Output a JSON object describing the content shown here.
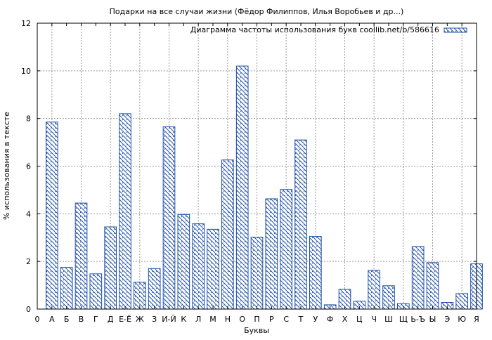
{
  "chart_data": {
    "type": "bar",
    "title": "Подарки на все случаи жизни (Фёдор Филиппов, Илья Воробьев и др...)",
    "xlabel": "Буквы",
    "ylabel": "% использования в тексте",
    "ylim": [
      0,
      12
    ],
    "yticks": [
      "0",
      "2",
      "4",
      "6",
      "8",
      "10",
      "12"
    ],
    "grid": true,
    "legend_position": "top-right",
    "x_first_tick": "0",
    "categories": [
      "А",
      "Б",
      "В",
      "Г",
      "Д",
      "Е-Ё",
      "Ж",
      "З",
      "И-Й",
      "К",
      "Л",
      "М",
      "Н",
      "О",
      "П",
      "Р",
      "С",
      "Т",
      "У",
      "Ф",
      "Х",
      "Ц",
      "Ч",
      "Ш",
      "Щ",
      "Ь-Ъ",
      "Ы",
      "Э",
      "Ю",
      "Я"
    ],
    "series": [
      {
        "name": "Диаграмма частоты использования букв coollib.net/b/586616",
        "values": [
          7.85,
          1.75,
          4.45,
          1.48,
          3.45,
          8.2,
          1.13,
          1.7,
          7.65,
          3.97,
          3.58,
          3.35,
          6.26,
          10.2,
          3.02,
          4.63,
          5.02,
          7.1,
          3.05,
          0.18,
          0.83,
          0.33,
          1.63,
          0.98,
          0.23,
          2.63,
          1.95,
          0.28,
          0.65,
          1.9
        ]
      }
    ],
    "colors": {
      "bar_stroke": "#1f4fa8",
      "hatch": "#1f4fa8",
      "grid": "#9a9a9a",
      "background": "#ffffff"
    }
  }
}
